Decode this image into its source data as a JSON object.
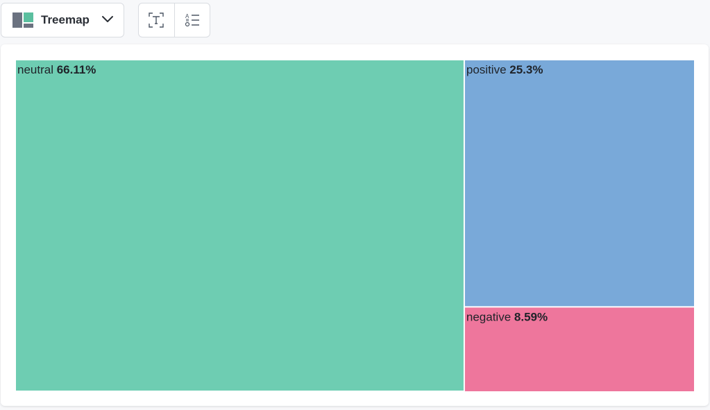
{
  "toolbar": {
    "chart_type_label": "Treemap",
    "chart_type_icon": "treemap-icon",
    "dropdown_icon": "chevron-down-icon",
    "text_tool_icon": "text-frame-icon",
    "list_tool_icon": "sorted-list-icon"
  },
  "colors": {
    "neutral": "#6ecdb2",
    "positive": "#79a9d9",
    "negative": "#ee769c"
  },
  "chart_data": {
    "type": "treemap",
    "title": "",
    "items": [
      {
        "name": "neutral",
        "value_label": "66.11%",
        "value": 66.11,
        "color": "#6ecdb2"
      },
      {
        "name": "positive",
        "value_label": "25.3%",
        "value": 25.3,
        "color": "#79a9d9"
      },
      {
        "name": "negative",
        "value_label": "8.59%",
        "value": 8.59,
        "color": "#ee769c"
      }
    ]
  }
}
